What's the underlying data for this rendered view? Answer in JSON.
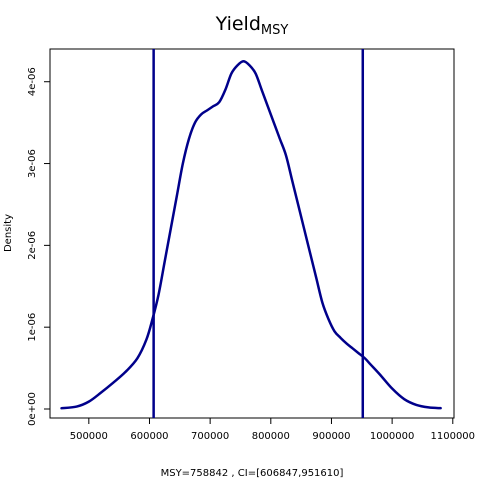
{
  "chart_data": {
    "type": "line",
    "title": "Yield",
    "title_subscript": "MSY",
    "xlabel": "MSY=758842 , CI=[606847,951610]",
    "ylabel": "Density",
    "xlim": [
      436000,
      1102000
    ],
    "ylim": [
      -1.1e-07,
      4.4e-06
    ],
    "x_ticks": [
      500000,
      600000,
      700000,
      800000,
      900000,
      1000000,
      1100000
    ],
    "x_tick_labels": [
      "500000",
      "600000",
      "700000",
      "800000",
      "900000",
      "1000000",
      "1100000"
    ],
    "y_ticks": [
      0,
      1e-06,
      2e-06,
      3e-06,
      4e-06
    ],
    "y_tick_labels": [
      "0e+00",
      "1e-06",
      "2e-06",
      "3e-06",
      "4e-06"
    ],
    "grid": false,
    "colors": {
      "series": "#00008B",
      "ci_lines": "#00008B",
      "axes": "#000000"
    },
    "series": [
      {
        "x": [
          455000,
          480000,
          500000,
          520000,
          540000,
          560000,
          580000,
          595000,
          605000,
          615000,
          625000,
          635000,
          645000,
          655000,
          665000,
          675000,
          685000,
          695000,
          705000,
          715000,
          725000,
          735000,
          745000,
          755000,
          765000,
          775000,
          785000,
          795000,
          805000,
          815000,
          825000,
          835000,
          845000,
          855000,
          865000,
          875000,
          885000,
          895000,
          905000,
          915000,
          925000,
          935000,
          945000,
          955000,
          965000,
          980000,
          1000000,
          1020000,
          1040000,
          1060000,
          1080000
        ],
        "y": [
          1e-08,
          3e-08,
          9e-08,
          2e-07,
          3.2e-07,
          4.5e-07,
          6.2e-07,
          8.5e-07,
          1.1e-06,
          1.4e-06,
          1.8e-06,
          2.2e-06,
          2.6e-06,
          3e-06,
          3.3e-06,
          3.5e-06,
          3.6e-06,
          3.65e-06,
          3.7e-06,
          3.75e-06,
          3.9e-06,
          4.1e-06,
          4.2e-06,
          4.25e-06,
          4.2e-06,
          4.1e-06,
          3.9e-06,
          3.7e-06,
          3.5e-06,
          3.3e-06,
          3.1e-06,
          2.8e-06,
          2.5e-06,
          2.2e-06,
          1.9e-06,
          1.6e-06,
          1.3e-06,
          1.1e-06,
          9.5e-07,
          8.7e-07,
          8e-07,
          7.4e-07,
          6.8e-07,
          6.2e-07,
          5.4e-07,
          4.2e-07,
          2.5e-07,
          1.2e-07,
          5e-08,
          2e-08,
          1e-08
        ]
      }
    ],
    "vlines": [
      606847,
      951610
    ]
  }
}
